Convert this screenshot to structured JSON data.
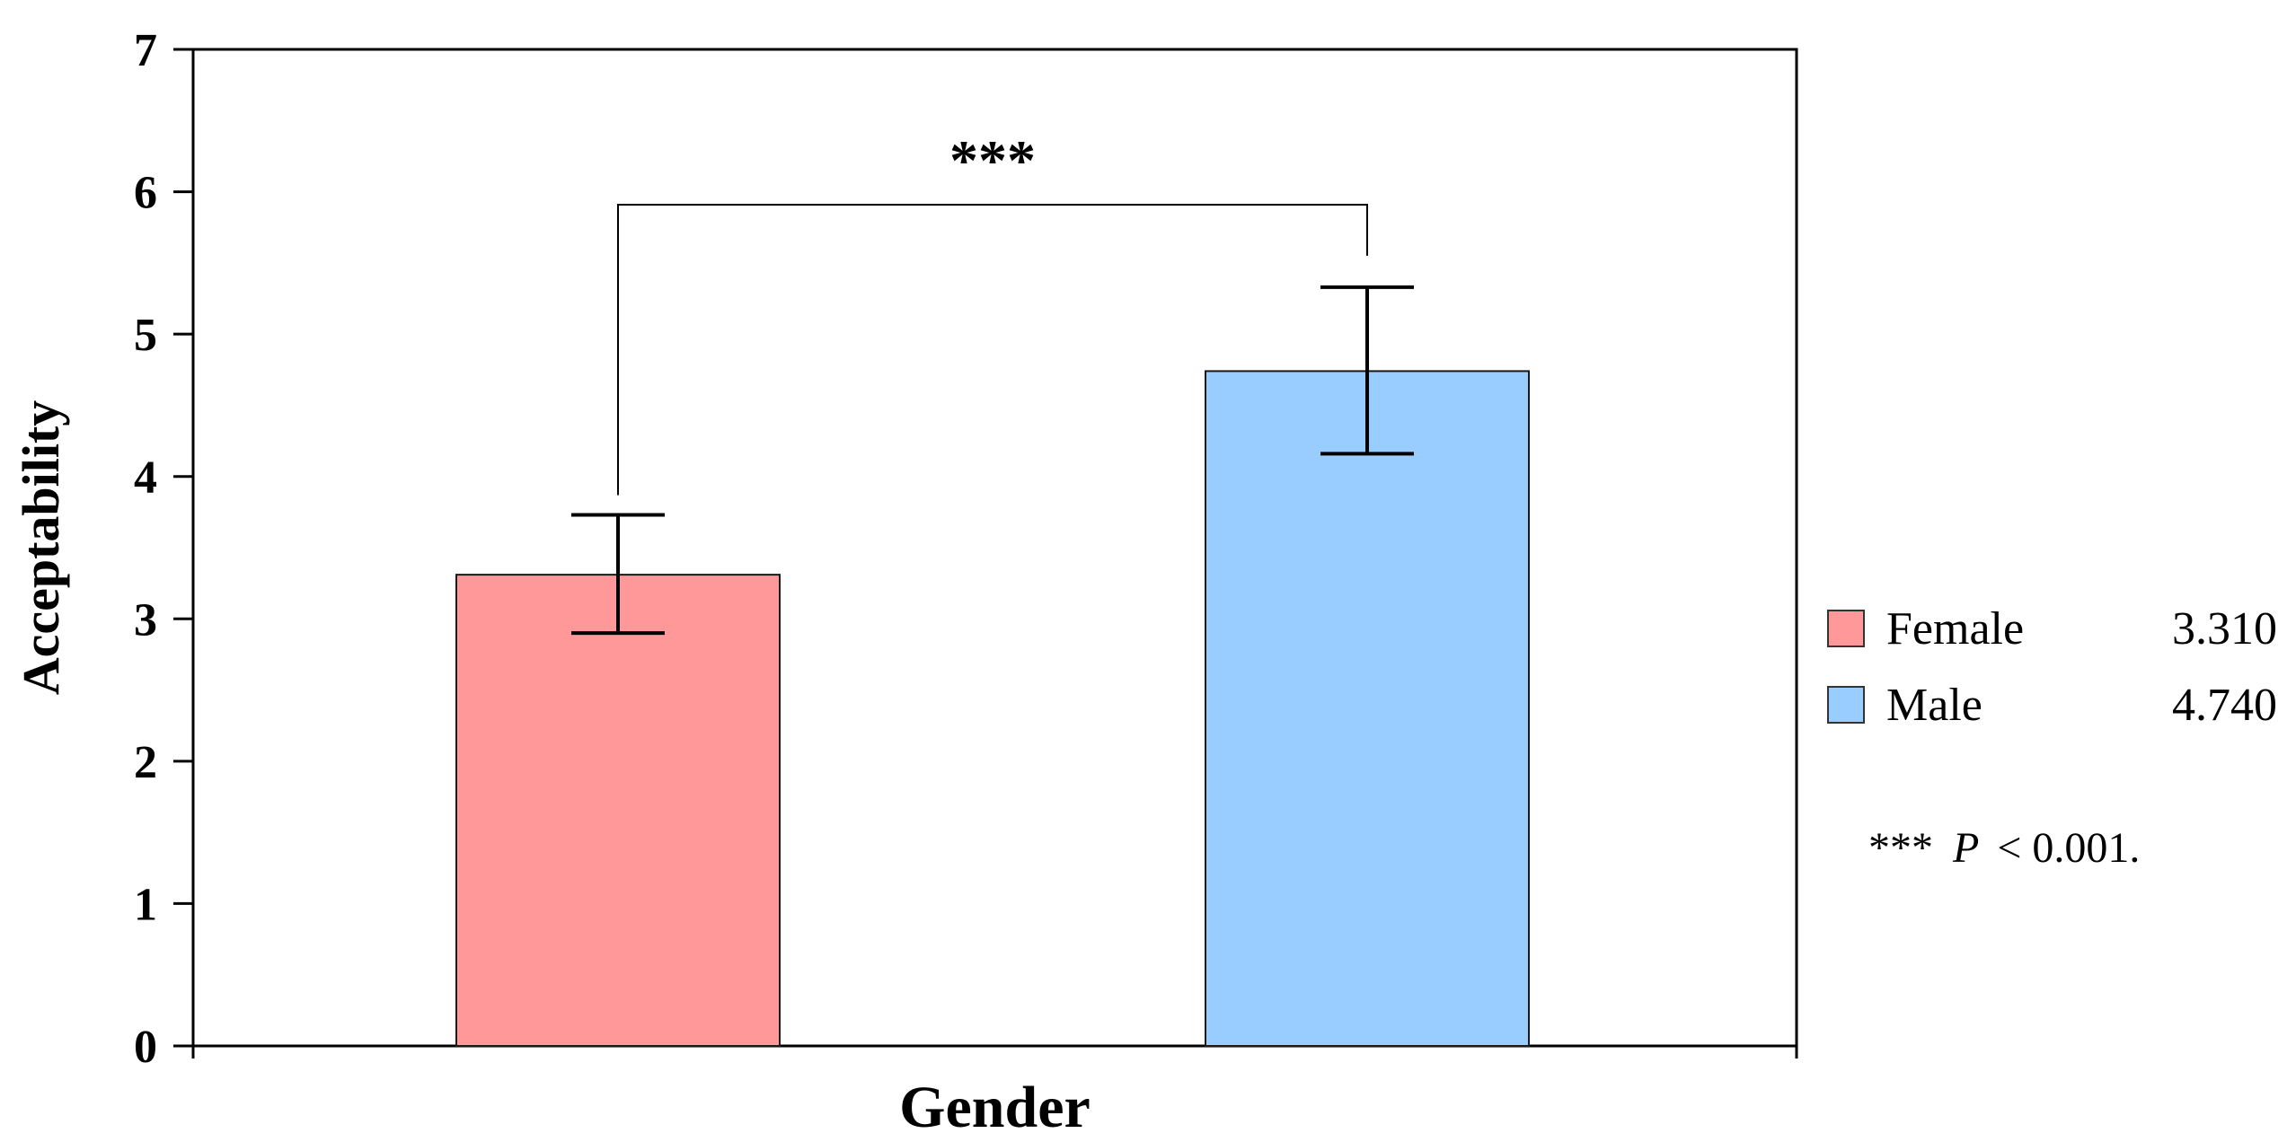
{
  "chart_data": {
    "type": "bar",
    "title": "",
    "xlabel": "Gender",
    "ylabel": "Acceptability",
    "ylim": [
      0,
      7
    ],
    "yticks": [
      "0",
      "1",
      "2",
      "3",
      "4",
      "5",
      "6",
      "7"
    ],
    "categories": [
      "Female",
      "Male"
    ],
    "values": [
      3.31,
      4.74
    ],
    "error_bars": [
      [
        2.9,
        3.73
      ],
      [
        4.16,
        5.33
      ]
    ],
    "colors": [
      "#ff9999",
      "#99ccff"
    ],
    "legend": {
      "placement": "right",
      "entries": [
        {
          "label": "Female",
          "value": "3.310"
        },
        {
          "label": "Male",
          "value": "4.740"
        }
      ]
    },
    "significance": {
      "between": [
        "Female",
        "Male"
      ],
      "label": "***"
    },
    "note": {
      "stars": "***",
      "p": "P",
      "rest": "< 0.001."
    },
    "grid": false
  }
}
